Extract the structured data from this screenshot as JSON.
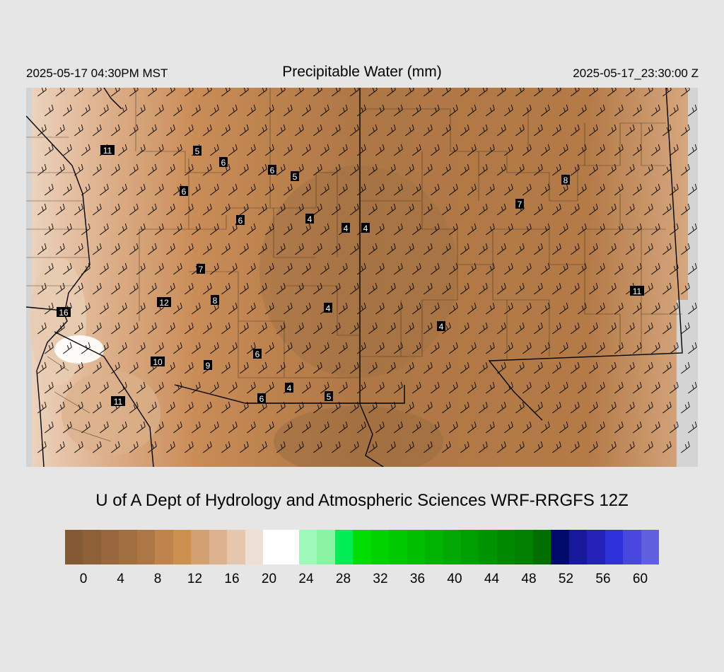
{
  "header": {
    "local_time": "2025-05-17 04:30PM MST",
    "title": "Precipitable Water (mm)",
    "valid_time": "2025-05-17_23:30:00 Z"
  },
  "footer": {
    "model_label": "U of A Dept of Hydrology and Atmospheric Sciences WRF-RRGFS 12Z"
  },
  "colorbar": {
    "colors": [
      "#845a34",
      "#8d6038",
      "#98683c",
      "#a26f40",
      "#ad7745",
      "#be844c",
      "#cd914f",
      "#d4a070",
      "#ddb290",
      "#e6c6ad",
      "#efe0d5",
      "#ffffff",
      "#ffffff",
      "#9ff9b9",
      "#88f4a4",
      "#00ee55",
      "#00dd00",
      "#00d200",
      "#00c800",
      "#00bd00",
      "#00b300",
      "#00a800",
      "#009e00",
      "#009300",
      "#008900",
      "#007e00",
      "#006e00",
      "#000a6b",
      "#17199a",
      "#2323b9",
      "#3131d9",
      "#4848e0",
      "#6060df"
    ],
    "ticks": [
      "0",
      "4",
      "8",
      "12",
      "16",
      "20",
      "24",
      "28",
      "32",
      "36",
      "40",
      "44",
      "48",
      "52",
      "56",
      "60"
    ]
  },
  "station_values": [
    {
      "label": "11"
    },
    {
      "label": "5"
    },
    {
      "label": "6"
    },
    {
      "label": "6"
    },
    {
      "label": "5"
    },
    {
      "label": "6"
    },
    {
      "label": "6"
    },
    {
      "label": "4"
    },
    {
      "label": "4"
    },
    {
      "label": "4"
    },
    {
      "label": "7"
    },
    {
      "label": "8"
    },
    {
      "label": "7"
    },
    {
      "label": "12"
    },
    {
      "label": "8"
    },
    {
      "label": "16"
    },
    {
      "label": "4"
    },
    {
      "label": "4"
    },
    {
      "label": "11"
    },
    {
      "label": "10"
    },
    {
      "label": "9"
    },
    {
      "label": "6"
    },
    {
      "label": "4"
    },
    {
      "label": "5"
    },
    {
      "label": "6"
    },
    {
      "label": "11"
    }
  ]
}
